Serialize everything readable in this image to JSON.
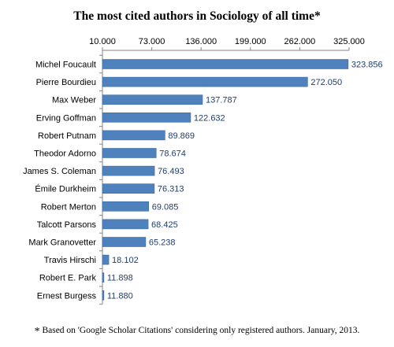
{
  "chart_data": {
    "type": "bar",
    "orientation": "horizontal",
    "title": "The most cited authors in Sociology of all time*",
    "footnote_marker": "*",
    "footnote": "Based on 'Google Scholar Citations' considering only registered authors. January, 2013.",
    "xlim": [
      10000,
      325000
    ],
    "x_ticks": [
      "10.000",
      "73.000",
      "136.000",
      "199.000",
      "262.000",
      "325.000"
    ],
    "x_tick_values": [
      10000,
      73000,
      136000,
      199000,
      262000,
      325000
    ],
    "x_axis_position": "top",
    "grid": false,
    "legend": "none",
    "categories": [
      "Michel Foucault",
      "Pierre Bourdieu",
      "Max Weber",
      "Erving Goffman",
      "Robert Putnam",
      "Theodor Adorno",
      "James S. Coleman",
      "Émile Durkheim",
      "Robert Merton",
      "Talcott Parsons",
      "Mark Granovetter",
      "Travis Hirschi",
      "Robert E. Park",
      "Ernest Burgess"
    ],
    "values": [
      323856,
      272050,
      137787,
      122632,
      89869,
      78674,
      76493,
      76313,
      69085,
      68425,
      65238,
      18102,
      11898,
      11880
    ],
    "value_labels": [
      "323.856",
      "272.050",
      "137.787",
      "122.632",
      "89.869",
      "78.674",
      "76.493",
      "76.313",
      "69.085",
      "68.425",
      "65.238",
      "18.102",
      "11.898",
      "11.880"
    ],
    "colors": {
      "bar": "#4f81bd",
      "bar_edge": "#3a6aa3",
      "value_label": "#1f3e6b",
      "axis": "#868686"
    }
  }
}
